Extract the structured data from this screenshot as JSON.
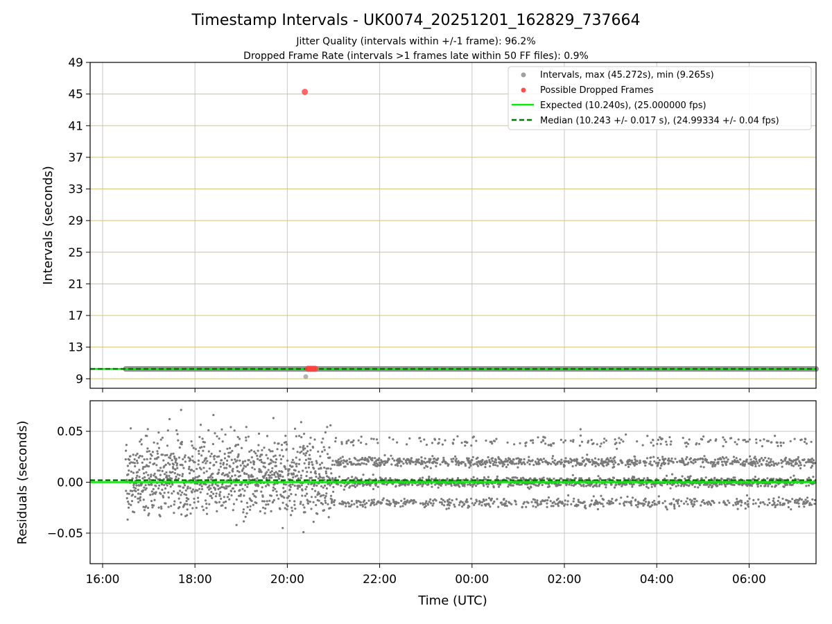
{
  "chart_data": {
    "type": "scatter",
    "title": "Timestamp Intervals - UK0074_20251201_162829_737664",
    "subtitle_lines": [
      "Jitter Quality (intervals within +/-1 frame): 96.2%",
      "Dropped Frame Rate (intervals >1 frames late within 50 FF files): 0.9%"
    ],
    "xlabel": "Time (UTC)",
    "x_unit": "hours since 16:00 UTC",
    "xlim": [
      -0.27,
      15.45
    ],
    "x_ticks": [
      {
        "value": 0,
        "label": "16:00"
      },
      {
        "value": 2,
        "label": "18:00"
      },
      {
        "value": 4,
        "label": "20:00"
      },
      {
        "value": 6,
        "label": "22:00"
      },
      {
        "value": 8,
        "label": "00:00"
      },
      {
        "value": 10,
        "label": "02:00"
      },
      {
        "value": 12,
        "label": "04:00"
      },
      {
        "value": 14,
        "label": "06:00"
      }
    ],
    "top_panel": {
      "ylabel": "Intervals (seconds)",
      "ylim": [
        7.8,
        49
      ],
      "y_ticks": [
        "9",
        "13",
        "17",
        "21",
        "25",
        "29",
        "33",
        "37",
        "41",
        "45",
        "49"
      ],
      "grid": "horizontal lines on y ticks (tan), vertical lines on x ticks (grey)",
      "legend_position": "top-right",
      "legend": [
        {
          "label": "Intervals, max (45.272s), min (9.265s)",
          "kind": "marker",
          "color": "#a0a0a0"
        },
        {
          "label": "Possible Dropped Frames",
          "kind": "marker",
          "color": "#ff5050"
        },
        {
          "label": "Expected (10.240s), (25.000000 fps)",
          "kind": "line",
          "color": "#00ee00"
        },
        {
          "label": "Median (10.243 +/- 0.017 s), (24.99334 +/- 0.04 fps)",
          "kind": "dashed",
          "color": "#007700"
        }
      ],
      "expected_interval": 10.24,
      "median_interval": 10.243,
      "intervals_band": {
        "x_start": 0.5,
        "x_end": 15.45,
        "y": 10.24
      },
      "outliers": [
        {
          "x": 4.4,
          "y": 9.265,
          "kind": "interval"
        },
        {
          "x": 4.38,
          "y": 45.272,
          "kind": "dropped"
        },
        {
          "x": 4.45,
          "y": 10.27,
          "kind": "dropped"
        },
        {
          "x": 4.5,
          "y": 10.27,
          "kind": "dropped"
        },
        {
          "x": 4.55,
          "y": 10.27,
          "kind": "dropped"
        },
        {
          "x": 4.6,
          "y": 10.27,
          "kind": "dropped"
        }
      ]
    },
    "bottom_panel": {
      "ylabel": "Residuals (seconds)",
      "ylim": [
        -0.08,
        0.08
      ],
      "y_ticks": [
        {
          "value": 0.05,
          "label": "0.05"
        },
        {
          "value": 0.0,
          "label": "0.00"
        },
        {
          "value": -0.05,
          "label": "−0.05"
        }
      ],
      "expected_residual": 0.0,
      "median_residual": 0.002,
      "residual_levels": [
        -0.02,
        0.0,
        0.02,
        0.04
      ],
      "noisy_until_x": 5.0,
      "x_start": 0.5,
      "extremes": [
        {
          "x": 1.7,
          "y": 0.071
        },
        {
          "x": 2.4,
          "y": 0.066
        },
        {
          "x": 1.45,
          "y": 0.062
        },
        {
          "x": 3.7,
          "y": 0.063
        },
        {
          "x": 4.3,
          "y": 0.059
        },
        {
          "x": 4.35,
          "y": -0.049
        },
        {
          "x": 3.9,
          "y": -0.045
        },
        {
          "x": 2.9,
          "y": -0.042
        },
        {
          "x": 10.35,
          "y": 0.052
        }
      ]
    }
  }
}
